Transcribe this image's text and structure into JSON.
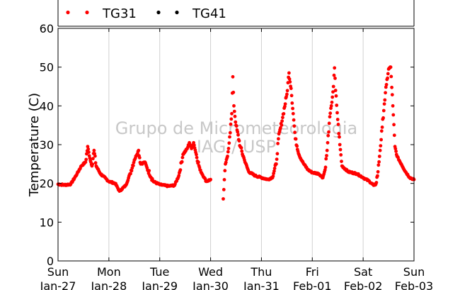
{
  "chart_data": {
    "type": "scatter",
    "ylabel": "Temperature (C)",
    "xlabel": "",
    "ylim": [
      0,
      60
    ],
    "yticks": [
      0,
      10,
      20,
      30,
      40,
      50,
      60
    ],
    "xlim_days": [
      "2013-01-27",
      "2013-02-03"
    ],
    "xticks": [
      {
        "day": "Sun",
        "date": "Jan-27"
      },
      {
        "day": "Mon",
        "date": "Jan-28"
      },
      {
        "day": "Tue",
        "date": "Jan-29"
      },
      {
        "day": "Wed",
        "date": "Jan-30"
      },
      {
        "day": "Thu",
        "date": "Jan-31"
      },
      {
        "day": "Fri",
        "date": "Feb-01"
      },
      {
        "day": "Sat",
        "date": "Feb-02"
      },
      {
        "day": "Sun",
        "date": "Feb-03"
      }
    ],
    "grid": "vertical",
    "legend_position": "top",
    "watermark": [
      "Grupo de Micrometeorologia",
      "IAG / USP"
    ],
    "series": [
      {
        "name": "TG31",
        "color": "#ff0000",
        "points": [
          [
            "Jan-27 00:00",
            19.8
          ],
          [
            "Jan-27 03:00",
            19.6
          ],
          [
            "Jan-27 06:00",
            19.8
          ],
          [
            "Jan-27 09:00",
            22.5
          ],
          [
            "Jan-27 11:00",
            24.5
          ],
          [
            "Jan-27 13:00",
            25.5
          ],
          [
            "Jan-27 14:00",
            29.5
          ],
          [
            "Jan-27 15:00",
            26.5
          ],
          [
            "Jan-27 16:00",
            24.5
          ],
          [
            "Jan-27 17:00",
            28.5
          ],
          [
            "Jan-27 18:00",
            24.5
          ],
          [
            "Jan-27 20:00",
            22.5
          ],
          [
            "Jan-28 00:00",
            20.5
          ],
          [
            "Jan-28 03:00",
            20.0
          ],
          [
            "Jan-28 05:00",
            18.0
          ],
          [
            "Jan-28 06:00",
            18.5
          ],
          [
            "Jan-28 08:00",
            19.5
          ],
          [
            "Jan-28 10:00",
            22.5
          ],
          [
            "Jan-28 12:00",
            26.0
          ],
          [
            "Jan-28 14:00",
            28.5
          ],
          [
            "Jan-28 15:00",
            25.0
          ],
          [
            "Jan-28 17:00",
            25.5
          ],
          [
            "Jan-28 18:00",
            24.0
          ],
          [
            "Jan-28 21:00",
            20.5
          ],
          [
            "Jan-29 00:00",
            19.7
          ],
          [
            "Jan-29 04:00",
            19.3
          ],
          [
            "Jan-29 07:00",
            19.5
          ],
          [
            "Jan-29 09:00",
            22.0
          ],
          [
            "Jan-29 11:00",
            27.5
          ],
          [
            "Jan-29 13:00",
            29.0
          ],
          [
            "Jan-29 14:00",
            30.5
          ],
          [
            "Jan-29 15:00",
            29.0
          ],
          [
            "Jan-29 16:00",
            30.5
          ],
          [
            "Jan-29 17:00",
            28.0
          ],
          [
            "Jan-29 19:00",
            23.5
          ],
          [
            "Jan-29 21:00",
            21.5
          ],
          [
            "Jan-29 22:00",
            20.5
          ],
          [
            "Jan-30 00:00",
            21.0
          ],
          [
            "Jan-30 06:00",
            16.0
          ],
          [
            "Jan-30 07:00",
            25.0
          ],
          [
            "Jan-30 08:00",
            27.0
          ],
          [
            "Jan-30 09:00",
            32.0
          ],
          [
            "Jan-30 10:00",
            38.0
          ],
          [
            "Jan-30 10:30",
            47.5
          ],
          [
            "Jan-30 11:00",
            40.0
          ],
          [
            "Jan-30 12:00",
            35.0
          ],
          [
            "Jan-30 14:00",
            29.5
          ],
          [
            "Jan-30 16:00",
            26.0
          ],
          [
            "Jan-30 18:00",
            23.0
          ],
          [
            "Jan-30 21:00",
            22.0
          ],
          [
            "Jan-31 00:00",
            21.5
          ],
          [
            "Jan-31 03:00",
            21.0
          ],
          [
            "Jan-31 05:00",
            21.5
          ],
          [
            "Jan-31 07:00",
            25.0
          ],
          [
            "Jan-31 08:00",
            31.5
          ],
          [
            "Jan-31 10:00",
            37.0
          ],
          [
            "Jan-31 12:00",
            43.0
          ],
          [
            "Jan-31 13:00",
            48.5
          ],
          [
            "Jan-31 14:00",
            44.5
          ],
          [
            "Jan-31 15:00",
            38.0
          ],
          [
            "Jan-31 16:00",
            31.5
          ],
          [
            "Jan-31 18:00",
            27.0
          ],
          [
            "Jan-31 20:00",
            25.0
          ],
          [
            "Jan-31 22:00",
            23.5
          ],
          [
            "Feb-01 00:00",
            22.8
          ],
          [
            "Feb-01 03:00",
            22.5
          ],
          [
            "Feb-01 05:00",
            21.5
          ],
          [
            "Feb-01 06:00",
            23.5
          ],
          [
            "Feb-01 07:00",
            28.5
          ],
          [
            "Feb-01 08:00",
            35.5
          ],
          [
            "Feb-01 09:00",
            40.0
          ],
          [
            "Feb-01 10:00",
            45.0
          ],
          [
            "Feb-01 10:30",
            49.8
          ],
          [
            "Feb-01 11:00",
            44.0
          ],
          [
            "Feb-01 12:00",
            36.5
          ],
          [
            "Feb-01 13:00",
            30.0
          ],
          [
            "Feb-01 14:00",
            24.5
          ],
          [
            "Feb-01 17:00",
            23.0
          ],
          [
            "Feb-01 21:00",
            22.5
          ],
          [
            "Feb-02 00:00",
            21.5
          ],
          [
            "Feb-02 03:00",
            20.5
          ],
          [
            "Feb-02 05:00",
            19.5
          ],
          [
            "Feb-02 06:00",
            19.8
          ],
          [
            "Feb-02 07:00",
            23.0
          ],
          [
            "Feb-02 08:00",
            28.5
          ],
          [
            "Feb-02 09:00",
            34.5
          ],
          [
            "Feb-02 10:00",
            40.5
          ],
          [
            "Feb-02 11:00",
            45.5
          ],
          [
            "Feb-02 12:00",
            49.5
          ],
          [
            "Feb-02 13:00",
            50.0
          ],
          [
            "Feb-02 14:00",
            40.0
          ],
          [
            "Feb-02 15:00",
            29.5
          ],
          [
            "Feb-02 16:00",
            27.0
          ],
          [
            "Feb-02 18:00",
            25.0
          ],
          [
            "Feb-02 20:00",
            23.0
          ],
          [
            "Feb-02 22:00",
            21.5
          ],
          [
            "Feb-03 00:00",
            21.0
          ]
        ]
      },
      {
        "name": "TG41",
        "color": "#000000",
        "points": []
      }
    ]
  }
}
